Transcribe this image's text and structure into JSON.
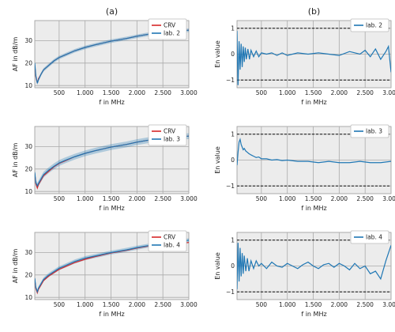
{
  "chart_data": [
    {
      "panel_label": "(a)",
      "type": "line",
      "xlabel": "f in MHz",
      "ylabel": "AF in dB/m",
      "xlim": [
        30,
        3000
      ],
      "ylim": [
        9,
        39
      ],
      "xticks": [
        500,
        1000,
        1500,
        2000,
        2500,
        3000
      ],
      "xtick_labels": [
        "500",
        "1.000",
        "1.500",
        "2.000",
        "2.500",
        "3.000"
      ],
      "yticks": [
        10,
        20,
        30
      ],
      "ytick_labels": [
        "10",
        "20",
        "30"
      ],
      "legend_position": "top-right",
      "band_halfwidth": 0.8,
      "series": [
        {
          "name": "CRV",
          "color": "#d62728",
          "x": [
            30,
            50,
            80,
            100,
            150,
            200,
            300,
            400,
            500,
            600,
            800,
            1000,
            1200,
            1500,
            1800,
            2000,
            2200,
            2500,
            2800,
            3000
          ],
          "y": [
            19,
            14,
            11,
            13,
            15,
            17,
            19,
            21,
            22.5,
            23.5,
            25.5,
            27,
            28.2,
            29.8,
            31,
            32,
            32.8,
            33.8,
            34.3,
            34.7
          ]
        },
        {
          "name": "lab. 2",
          "color": "#1f77b4",
          "x": [
            30,
            50,
            80,
            100,
            150,
            200,
            300,
            400,
            500,
            600,
            800,
            1000,
            1200,
            1500,
            1800,
            2000,
            2200,
            2500,
            2800,
            3000
          ],
          "y": [
            20,
            14.5,
            11,
            12.5,
            15,
            17,
            19,
            21,
            22.5,
            23.5,
            25.5,
            27,
            28.2,
            29.8,
            31,
            32,
            32.8,
            33.8,
            34.3,
            34.7
          ]
        }
      ]
    },
    {
      "panel_label": "(b)",
      "type": "line",
      "xlabel": "f in MHz",
      "ylabel": "En value",
      "xlim": [
        30,
        3000
      ],
      "ylim": [
        -1.3,
        1.3
      ],
      "xticks": [
        500,
        1000,
        1500,
        2000,
        2500,
        3000
      ],
      "xtick_labels": [
        "500",
        "1.000",
        "1.500",
        "2.000",
        "2.500",
        "3.000"
      ],
      "yticks": [
        -1,
        0,
        1
      ],
      "ytick_labels": [
        "−1",
        "0",
        "1"
      ],
      "reference_lines": [
        -1,
        1
      ],
      "legend_position": "top-right",
      "series": [
        {
          "name": "lab. 2",
          "color": "#1f77b4",
          "x": [
            30,
            50,
            70,
            90,
            110,
            130,
            150,
            170,
            190,
            210,
            240,
            270,
            300,
            350,
            400,
            450,
            500,
            600,
            700,
            800,
            900,
            1000,
            1200,
            1400,
            1600,
            1800,
            2000,
            2200,
            2400,
            2500,
            2600,
            2700,
            2800,
            2900,
            2950,
            3000
          ],
          "y": [
            0.9,
            -1.2,
            0.5,
            -0.6,
            0.4,
            -0.5,
            0.3,
            -0.3,
            0.25,
            -0.2,
            0.2,
            -0.2,
            0.15,
            -0.1,
            0.12,
            -0.1,
            0.05,
            0,
            0.05,
            -0.05,
            0.05,
            -0.05,
            0.05,
            0,
            0.05,
            0,
            -0.05,
            0.1,
            0,
            0.15,
            -0.1,
            0.2,
            -0.2,
            0.1,
            0.3,
            -0.7
          ]
        }
      ]
    },
    {
      "panel_label": "",
      "type": "line",
      "xlabel": "f in MHz",
      "ylabel": "AF in dB/m",
      "xlim": [
        30,
        3000
      ],
      "ylim": [
        9,
        39
      ],
      "xticks": [
        500,
        1000,
        1500,
        2000,
        2500,
        3000
      ],
      "xtick_labels": [
        "500",
        "1.000",
        "1.500",
        "2.000",
        "2.500",
        "3.000"
      ],
      "yticks": [
        10,
        20,
        30
      ],
      "ytick_labels": [
        "10",
        "20",
        "30"
      ],
      "legend_position": "top-right",
      "band_halfwidth": 1.3,
      "series": [
        {
          "name": "CRV",
          "color": "#d62728",
          "x": [
            30,
            50,
            80,
            100,
            150,
            200,
            300,
            400,
            500,
            600,
            800,
            1000,
            1200,
            1500,
            1800,
            2000,
            2200,
            2500,
            2800,
            3000
          ],
          "y": [
            18,
            13.5,
            11.5,
            13,
            15,
            17,
            19,
            21,
            22.5,
            23.5,
            25.5,
            27,
            28.2,
            29.8,
            31,
            32,
            32.8,
            33.8,
            34.3,
            34.7
          ]
        },
        {
          "name": "lab. 3",
          "color": "#1f77b4",
          "x": [
            30,
            50,
            80,
            100,
            150,
            200,
            300,
            400,
            500,
            600,
            800,
            1000,
            1200,
            1500,
            1800,
            2000,
            2200,
            2500,
            2800,
            3000
          ],
          "y": [
            18.5,
            14,
            12.5,
            13.5,
            15.5,
            17.5,
            19.5,
            21.2,
            22.7,
            23.7,
            25.5,
            27,
            28.2,
            29.8,
            31,
            32,
            32.8,
            33.8,
            34.3,
            34.7
          ]
        }
      ]
    },
    {
      "panel_label": "",
      "type": "line",
      "xlabel": "f in MHz",
      "ylabel": "En value",
      "xlim": [
        30,
        3000
      ],
      "ylim": [
        -1.3,
        1.3
      ],
      "xticks": [
        500,
        1000,
        1500,
        2000,
        2500,
        3000
      ],
      "xtick_labels": [
        "500",
        "1.000",
        "1.500",
        "2.000",
        "2.500",
        "3.000"
      ],
      "yticks": [
        -1,
        0,
        1
      ],
      "ytick_labels": [
        "−1",
        "0",
        "1"
      ],
      "reference_lines": [
        -1,
        1
      ],
      "legend_position": "top-right",
      "series": [
        {
          "name": "lab. 3",
          "color": "#1f77b4",
          "x": [
            30,
            50,
            70,
            90,
            110,
            130,
            150,
            170,
            200,
            230,
            260,
            300,
            350,
            400,
            450,
            500,
            600,
            700,
            800,
            900,
            1000,
            1200,
            1400,
            1600,
            1800,
            2000,
            2200,
            2400,
            2600,
            2800,
            3000
          ],
          "y": [
            -0.2,
            0.3,
            0.7,
            0.8,
            0.6,
            0.5,
            0.4,
            0.45,
            0.35,
            0.3,
            0.25,
            0.2,
            0.15,
            0.1,
            0.12,
            0.05,
            0.05,
            0,
            0.02,
            -0.02,
            0,
            -0.05,
            -0.05,
            -0.1,
            -0.05,
            -0.1,
            -0.1,
            -0.05,
            -0.1,
            -0.1,
            -0.05
          ]
        }
      ]
    },
    {
      "panel_label": "",
      "type": "line",
      "xlabel": "f in MHz",
      "ylabel": "AF in dB/m",
      "xlim": [
        30,
        3000
      ],
      "ylim": [
        9,
        39
      ],
      "xticks": [
        500,
        1000,
        1500,
        2000,
        2500,
        3000
      ],
      "xtick_labels": [
        "500",
        "1.000",
        "1.500",
        "2.000",
        "2.500",
        "3.000"
      ],
      "yticks": [
        10,
        20,
        30
      ],
      "ytick_labels": [
        "10",
        "20",
        "30"
      ],
      "legend_position": "top-right",
      "band_halfwidth": 0.9,
      "series": [
        {
          "name": "CRV",
          "color": "#d62728",
          "x": [
            30,
            50,
            80,
            100,
            150,
            200,
            300,
            400,
            500,
            600,
            800,
            1000,
            1200,
            1500,
            1800,
            2000,
            2200,
            2500,
            2800,
            3000
          ],
          "y": [
            18,
            14,
            12,
            13.5,
            15.5,
            17.5,
            19.5,
            21,
            22.5,
            23.5,
            25.5,
            27,
            28.2,
            29.8,
            31,
            32,
            32.8,
            33.6,
            34,
            34.5
          ]
        },
        {
          "name": "lab. 4",
          "color": "#1f77b4",
          "x": [
            30,
            50,
            80,
            100,
            150,
            200,
            300,
            400,
            500,
            600,
            800,
            1000,
            1200,
            1500,
            1800,
            2000,
            2200,
            2500,
            2800,
            3000
          ],
          "y": [
            18.5,
            14.5,
            12.5,
            14,
            16,
            18,
            20,
            21.5,
            23,
            24,
            26,
            27.5,
            28.5,
            30,
            31.2,
            32.2,
            33,
            34.2,
            34.8,
            35.5
          ]
        }
      ]
    },
    {
      "panel_label": "",
      "type": "line",
      "xlabel": "f in MHz",
      "ylabel": "En value",
      "xlim": [
        30,
        3000
      ],
      "ylim": [
        -1.3,
        1.3
      ],
      "xticks": [
        500,
        1000,
        1500,
        2000,
        2500,
        3000
      ],
      "xtick_labels": [
        "500",
        "1.000",
        "1.500",
        "2.000",
        "2.500",
        "3.000"
      ],
      "yticks": [
        -1,
        0,
        1
      ],
      "ytick_labels": [
        "−1",
        "0",
        "1"
      ],
      "reference_lines": [
        -1,
        1
      ],
      "legend_position": "top-right",
      "series": [
        {
          "name": "lab. 4",
          "color": "#1f77b4",
          "x": [
            30,
            50,
            70,
            90,
            110,
            130,
            150,
            170,
            200,
            230,
            260,
            300,
            350,
            400,
            450,
            500,
            600,
            700,
            800,
            900,
            1000,
            1100,
            1200,
            1300,
            1400,
            1500,
            1600,
            1700,
            1800,
            1900,
            2000,
            2100,
            2200,
            2300,
            2400,
            2500,
            2600,
            2700,
            2800,
            2900,
            3000
          ],
          "y": [
            -0.9,
            0.9,
            -0.6,
            0.7,
            -0.4,
            0.5,
            -0.3,
            0.4,
            -0.2,
            0.3,
            -0.2,
            0.2,
            -0.1,
            0.2,
            0,
            0.1,
            -0.1,
            0.15,
            0,
            -0.05,
            0.1,
            0,
            -0.1,
            0.05,
            0.15,
            0,
            -0.1,
            0.05,
            0.1,
            -0.05,
            0.1,
            0,
            -0.15,
            0.1,
            -0.1,
            0,
            -0.3,
            -0.2,
            -0.5,
            0.2,
            0.8
          ]
        }
      ]
    }
  ]
}
